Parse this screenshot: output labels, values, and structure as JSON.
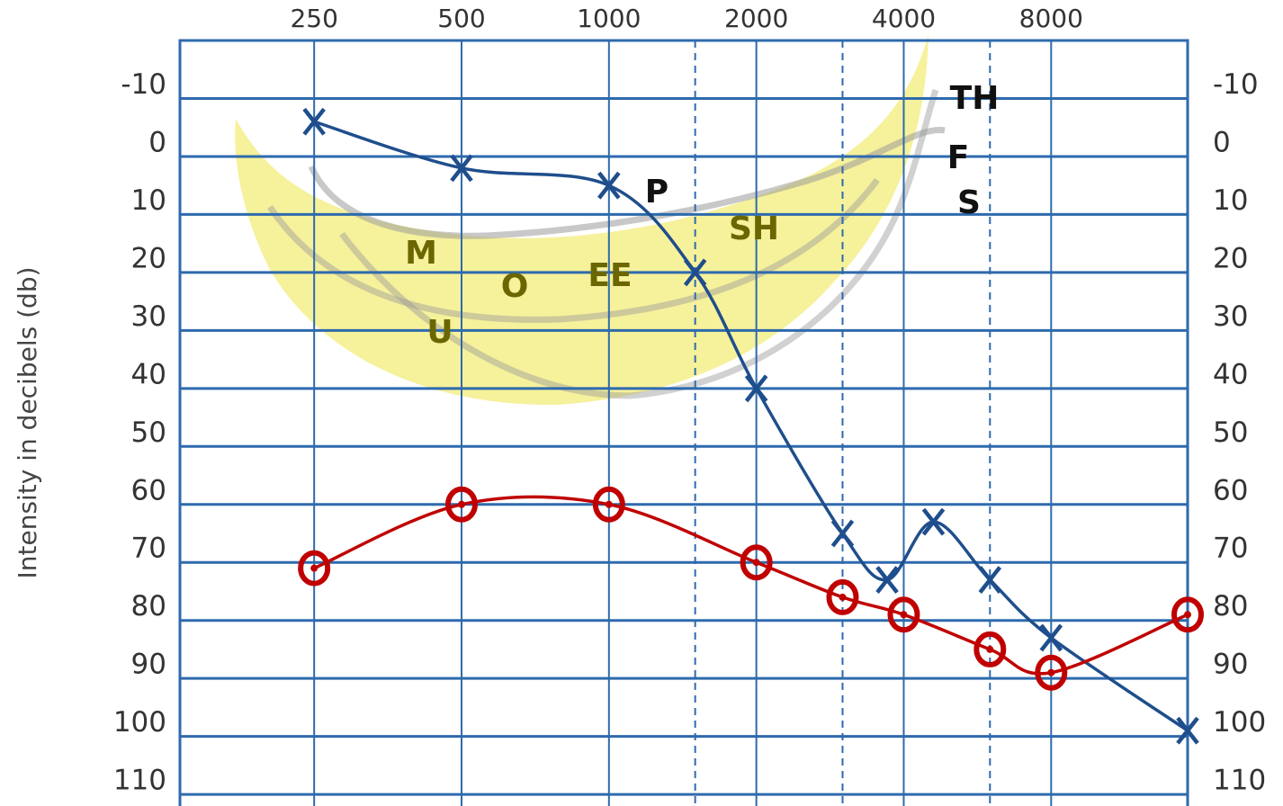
{
  "chart_data": {
    "type": "line",
    "y_label": "Intensity in decibels (db)",
    "x": [
      250,
      500,
      1000,
      1500,
      2000,
      3000,
      3700,
      4600,
      6000,
      8000,
      15200
    ],
    "series": [
      {
        "name": null,
        "color": "#1f4e8c",
        "marker": "x",
        "x": [
          250,
          500,
          1000,
          1500,
          2000,
          3000,
          3700,
          4600,
          6000,
          8000,
          15200
        ],
        "values": [
          -6,
          2,
          5,
          20,
          40,
          65,
          73,
          63,
          73,
          83,
          99
        ]
      },
      {
        "name": null,
        "color": "#c00000",
        "marker": "o",
        "x": [
          250,
          500,
          1000,
          2000,
          3000,
          4000,
          6000,
          8000,
          15200
        ],
        "values": [
          71,
          60,
          60,
          70,
          76,
          79,
          85,
          89,
          79
        ]
      }
    ],
    "xscale": "log",
    "xlim": [
      133,
      15200
    ],
    "xticks": [
      250,
      500,
      1000,
      2000,
      4000,
      8000
    ],
    "xminorticks": [
      1500,
      3000,
      6000
    ],
    "ylim": [
      -20,
      112
    ],
    "yinverted": true,
    "yticks": [
      -10,
      0,
      10,
      20,
      30,
      40,
      50,
      60,
      70,
      80,
      90,
      100,
      110
    ],
    "grid": true,
    "grid_color": "#2e6aad",
    "annotations": [
      "M",
      "O",
      "U",
      "EE",
      "P",
      "SH",
      "TH",
      "F",
      "S"
    ]
  }
}
